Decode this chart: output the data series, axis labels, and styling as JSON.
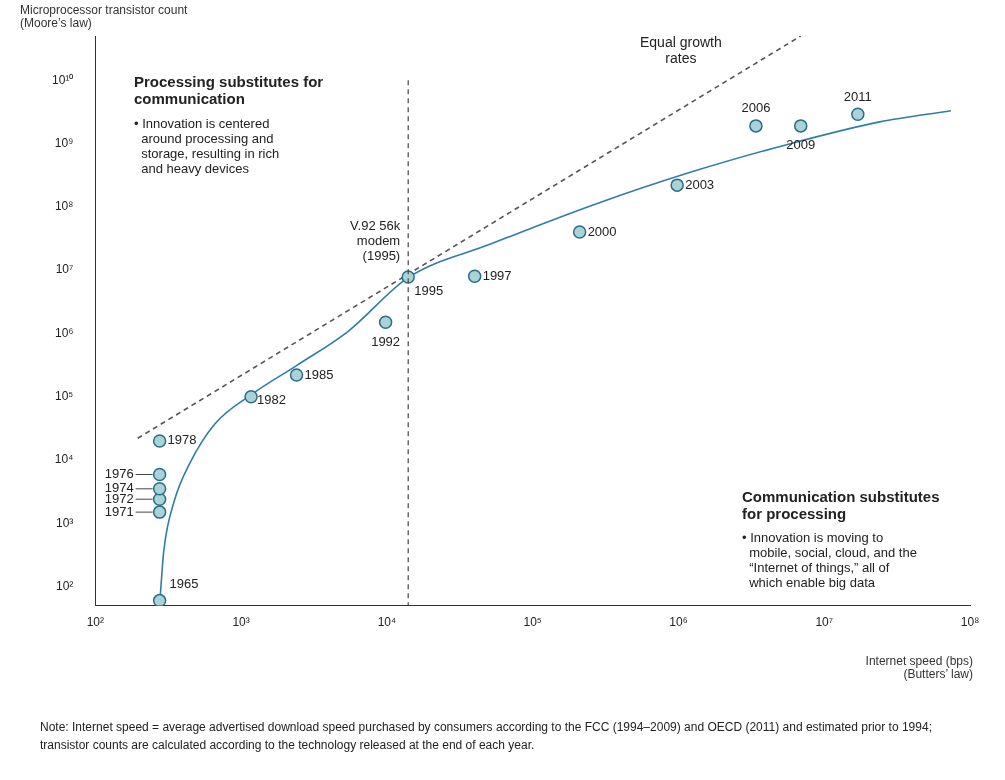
{
  "chart_data": {
    "type": "scatter",
    "ylabel": "Microprocessor transistor count\n(Moore’s law)",
    "xlabel": "Internet speed (bps)\n(Butters’ law)",
    "log": "xy",
    "grid": false,
    "legend": false,
    "xlim": [
      100,
      100000000
    ],
    "ylim": [
      50,
      50000000000
    ],
    "xticks": [
      {
        "value": 100,
        "label": "10²"
      },
      {
        "value": 1000,
        "label": "10³"
      },
      {
        "value": 10000,
        "label": "10⁴"
      },
      {
        "value": 100000,
        "label": "10⁵"
      },
      {
        "value": 1000000,
        "label": "10⁶"
      },
      {
        "value": 10000000,
        "label": "10⁷"
      },
      {
        "value": 100000000,
        "label": "10⁸"
      }
    ],
    "yticks": [
      {
        "value": 100,
        "label": "10²"
      },
      {
        "value": 1000,
        "label": "10³"
      },
      {
        "value": 10000,
        "label": "10⁴"
      },
      {
        "value": 100000,
        "label": "10⁵"
      },
      {
        "value": 1000000,
        "label": "10⁶"
      },
      {
        "value": 10000000,
        "label": "10⁷"
      },
      {
        "value": 100000000,
        "label": "10⁸"
      },
      {
        "value": 1000000000,
        "label": "10⁹"
      },
      {
        "value": 10000000000,
        "label": "10¹⁰"
      }
    ],
    "series": [
      {
        "type": "scatter",
        "marker": "circle",
        "color": "#a9d3d6",
        "x": [
          276,
          276,
          276,
          276,
          276,
          276,
          1170,
          2400,
          9800,
          14000,
          40000,
          210000,
          980000,
          3400000,
          6900000,
          17000000
        ],
        "values": [
          60,
          1500,
          2400,
          3500,
          5900,
          20000,
          100000,
          220000,
          1500000,
          7800000,
          8000000,
          40000000,
          220000000,
          1900000000,
          1900000000,
          2900000000
        ]
      },
      {
        "type": "line",
        "marker": "none",
        "color": "#2e7ea6",
        "x": [
          277,
          295,
          347,
          445,
          660,
          1170,
          2400,
          5400,
          14000,
          52000,
          260000,
          1300000,
          6600000,
          24000000,
          74000000
        ],
        "values": [
          59,
          370,
          2200,
          8900,
          37000,
          107000,
          310000,
          1070000,
          7600000,
          26000000,
          107000000,
          370000000,
          1070000000,
          2200000000,
          3300000000
        ]
      },
      {
        "type": "line",
        "marker": "none",
        "line_style": "dashed",
        "color": "#555555",
        "x": [
          195,
          6900000
        ],
        "values": [
          22000,
          50000000000
        ]
      }
    ],
    "ref_lines": [
      {
        "axis": "x",
        "value": 14000,
        "label": "V.92 56k\nmodem\n(1995)",
        "color": "#444444",
        "line_style": "dashed"
      }
    ],
    "annotations": [
      "Equal growth\nrates",
      "Processing substitutes for\ncommunication",
      "• Innovation is centered\n  around processing and\n  storage, resulting in rich\n  and heavy devices",
      "Communication substitutes\nfor processing",
      "• Innovation is moving to\n  mobile, social, cloud, and the\n  “Internet of things,” all of\n  which enable big data",
      "Note: Internet speed = average advertised download speed purchased by consumers according to the FCC (1994–2009) and OECD (2011) and estimated prior to 1994; transistor counts are calculated according to the technology released at the end of each year.",
      {
        "text": "1965",
        "x": 276,
        "y": 60
      },
      {
        "text": "1971",
        "x": 276,
        "y": 1500
      },
      {
        "text": "1972",
        "x": 276,
        "y": 2400
      },
      {
        "text": "1974",
        "x": 276,
        "y": 3500
      },
      {
        "text": "1976",
        "x": 276,
        "y": 5900
      },
      {
        "text": "1978",
        "x": 276,
        "y": 20000
      },
      {
        "text": "1982",
        "x": 1170,
        "y": 100000
      },
      {
        "text": "1985",
        "x": 2400,
        "y": 220000
      },
      {
        "text": "1992",
        "x": 9800,
        "y": 1500000
      },
      {
        "text": "1995",
        "x": 14000,
        "y": 7800000
      },
      {
        "text": "1997",
        "x": 40000,
        "y": 8000000
      },
      {
        "text": "2000",
        "x": 210000,
        "y": 40000000
      },
      {
        "text": "2003",
        "x": 980000,
        "y": 220000000
      },
      {
        "text": "2006",
        "x": 3400000,
        "y": 1900000000
      },
      {
        "text": "2009",
        "x": 6900000,
        "y": 1900000000
      },
      {
        "text": "2011",
        "x": 17000000,
        "y": 2900000000
      }
    ]
  }
}
